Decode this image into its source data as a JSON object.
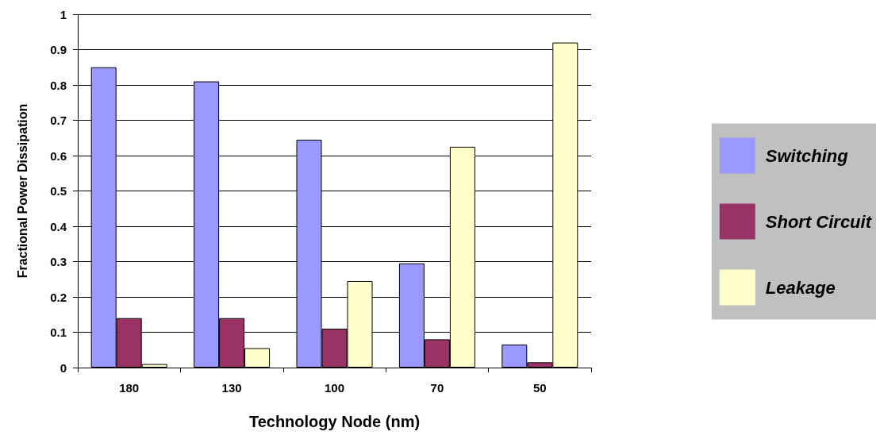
{
  "chart_data": {
    "type": "bar",
    "xlabel": "Technology Node (nm)",
    "ylabel": "Fractional Power Dissipation",
    "categories": [
      "180",
      "130",
      "100",
      "70",
      "50"
    ],
    "series": [
      {
        "name": "Switching",
        "color": "#9999ff",
        "values": [
          0.85,
          0.81,
          0.645,
          0.295,
          0.065
        ]
      },
      {
        "name": "Short Circuit",
        "color": "#993366",
        "values": [
          0.14,
          0.14,
          0.11,
          0.08,
          0.015
        ]
      },
      {
        "name": "Leakage",
        "color": "#ffffcc",
        "values": [
          0.01,
          0.055,
          0.245,
          0.625,
          0.92
        ]
      }
    ],
    "ylim": [
      0,
      1
    ],
    "yticks": [
      0,
      0.1,
      0.2,
      0.3,
      0.4,
      0.5,
      0.6,
      0.7,
      0.8,
      0.9,
      1
    ],
    "grid": "y",
    "legend": "right"
  }
}
